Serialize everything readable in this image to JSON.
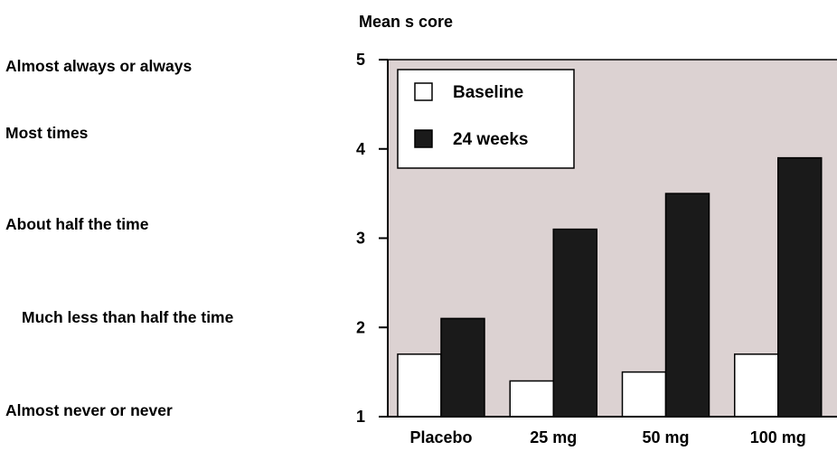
{
  "ylabel": "Mean s core",
  "response_categories": [
    "Almost always or always",
    "Most times",
    "About half the time",
    "Much less than half the time",
    "Almost never or never"
  ],
  "colors": {
    "plot_background": "#dcd2d2",
    "baseline_fill": "#ffffff",
    "weeks_fill": "#1a1a1a",
    "axis": "#000000"
  },
  "chart_data": {
    "type": "bar",
    "title": "",
    "xlabel": "",
    "ylabel": "Mean s core",
    "categories": [
      "Placebo",
      "25 mg",
      "50 mg",
      "100 mg"
    ],
    "series": [
      {
        "name": "Baseline",
        "values": [
          1.7,
          1.4,
          1.5,
          1.7
        ],
        "color": "#ffffff"
      },
      {
        "name": "24 weeks",
        "values": [
          2.1,
          3.1,
          3.5,
          3.9
        ],
        "color": "#1a1a1a"
      }
    ],
    "ylim": [
      1,
      5
    ],
    "yticks": [
      1,
      2,
      3,
      4,
      5
    ],
    "legend_position": "top-left",
    "grid": false
  }
}
